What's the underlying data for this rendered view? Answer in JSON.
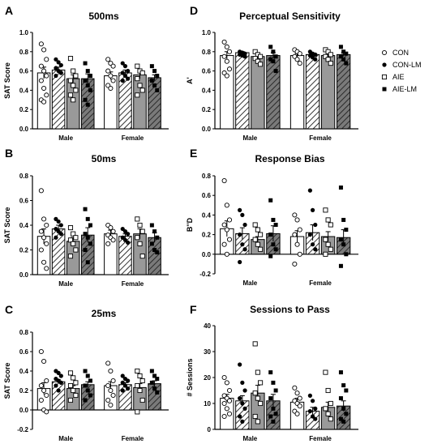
{
  "legend": {
    "items": [
      {
        "label": "CON",
        "marker": "open-circle",
        "fill": "#ffffff"
      },
      {
        "label": "CON-LM",
        "marker": "filled-circle",
        "fill": "#ffffff"
      },
      {
        "label": "AIE",
        "marker": "open-square",
        "fill": "#999999"
      },
      {
        "label": "AIE-LM",
        "marker": "filled-square",
        "fill": "hatched-dark"
      }
    ],
    "placement": "right"
  },
  "chart_data": [
    {
      "panel": "A",
      "type": "bar",
      "title": "500ms",
      "ylabel": "SAT Score",
      "ylim": [
        0,
        1.0
      ],
      "yticks": [
        "0.0",
        "0.2",
        "0.4",
        "0.6",
        "0.8",
        "1.0"
      ],
      "categories": [
        "Male",
        "Female"
      ],
      "series": [
        {
          "name": "CON",
          "values": [
            0.58,
            0.55
          ],
          "err": [
            0.06,
            0.04
          ],
          "points": [
            [
              0.88,
              0.82,
              0.72,
              0.65,
              0.6,
              0.55,
              0.5,
              0.42,
              0.35,
              0.3,
              0.28
            ],
            [
              0.72,
              0.68,
              0.65,
              0.6,
              0.55,
              0.5,
              0.45,
              0.42
            ]
          ]
        },
        {
          "name": "CON-LM",
          "values": [
            0.61,
            0.58
          ],
          "err": [
            0.03,
            0.03
          ],
          "points": [
            [
              0.72,
              0.69,
              0.66,
              0.63,
              0.6,
              0.58,
              0.55
            ],
            [
              0.68,
              0.65,
              0.6,
              0.58,
              0.55,
              0.52,
              0.5
            ]
          ]
        },
        {
          "name": "AIE",
          "values": [
            0.52,
            0.56
          ],
          "err": [
            0.04,
            0.04
          ],
          "points": [
            [
              0.73,
              0.6,
              0.55,
              0.5,
              0.45,
              0.4,
              0.35,
              0.3
            ],
            [
              0.65,
              0.6,
              0.58,
              0.52,
              0.45,
              0.4,
              0.35
            ]
          ]
        },
        {
          "name": "AIE-LM",
          "values": [
            0.52,
            0.53
          ],
          "err": [
            0.05,
            0.03
          ],
          "points": [
            [
              0.68,
              0.6,
              0.55,
              0.5,
              0.45,
              0.4,
              0.3,
              0.25
            ],
            [
              0.65,
              0.6,
              0.55,
              0.5,
              0.45,
              0.4
            ]
          ]
        }
      ]
    },
    {
      "panel": "B",
      "type": "bar",
      "title": "50ms",
      "ylabel": "SAT Score",
      "ylim": [
        0,
        0.8
      ],
      "yticks": [
        "0.0",
        "0.2",
        "0.4",
        "0.6",
        "0.8"
      ],
      "categories": [
        "Male",
        "Female"
      ],
      "series": [
        {
          "name": "CON",
          "values": [
            0.31,
            0.33
          ],
          "err": [
            0.06,
            0.03
          ],
          "points": [
            [
              0.68,
              0.45,
              0.4,
              0.35,
              0.3,
              0.25,
              0.2,
              0.1,
              0.05
            ],
            [
              0.4,
              0.38,
              0.35,
              0.32,
              0.3,
              0.28,
              0.25
            ]
          ]
        },
        {
          "name": "CON-LM",
          "values": [
            0.37,
            0.31
          ],
          "err": [
            0.03,
            0.02
          ],
          "points": [
            [
              0.45,
              0.43,
              0.4,
              0.37,
              0.35,
              0.33,
              0.3
            ],
            [
              0.37,
              0.35,
              0.33,
              0.3,
              0.28,
              0.26
            ]
          ]
        },
        {
          "name": "AIE",
          "values": [
            0.27,
            0.33
          ],
          "err": [
            0.03,
            0.04
          ],
          "points": [
            [
              0.38,
              0.33,
              0.3,
              0.28,
              0.25,
              0.2,
              0.15
            ],
            [
              0.45,
              0.4,
              0.35,
              0.3,
              0.25,
              0.15
            ]
          ]
        },
        {
          "name": "AIE-LM",
          "values": [
            0.32,
            0.3
          ],
          "err": [
            0.06,
            0.04
          ],
          "points": [
            [
              0.53,
              0.45,
              0.4,
              0.33,
              0.3,
              0.25,
              0.2,
              0.1
            ],
            [
              0.4,
              0.35,
              0.3,
              0.25,
              0.2,
              0.18
            ]
          ]
        }
      ]
    },
    {
      "panel": "C",
      "type": "bar",
      "title": "25ms",
      "ylabel": "SAT Score",
      "ylim": [
        -0.2,
        0.8
      ],
      "yticks": [
        "-0.2",
        "0.0",
        "0.2",
        "0.4",
        "0.6",
        "0.8"
      ],
      "categories": [
        "Male",
        "Female"
      ],
      "series": [
        {
          "name": "CON",
          "values": [
            0.22,
            0.25
          ],
          "err": [
            0.06,
            0.04
          ],
          "points": [
            [
              0.6,
              0.5,
              0.3,
              0.25,
              0.2,
              0.15,
              0.1,
              0.0,
              -0.02
            ],
            [
              0.48,
              0.4,
              0.3,
              0.25,
              0.2,
              0.15,
              0.1,
              0.05
            ]
          ]
        },
        {
          "name": "CON-LM",
          "values": [
            0.29,
            0.26
          ],
          "err": [
            0.02,
            0.02
          ],
          "points": [
            [
              0.4,
              0.38,
              0.35,
              0.32,
              0.3,
              0.28,
              0.25,
              0.2
            ],
            [
              0.35,
              0.32,
              0.3,
              0.28,
              0.25,
              0.22,
              0.2
            ]
          ]
        },
        {
          "name": "AIE",
          "values": [
            0.22,
            0.23
          ],
          "err": [
            0.03,
            0.04
          ],
          "points": [
            [
              0.38,
              0.33,
              0.28,
              0.25,
              0.2,
              0.15,
              0.1
            ],
            [
              0.4,
              0.35,
              0.3,
              0.25,
              0.2,
              0.1,
              -0.02
            ]
          ]
        },
        {
          "name": "AIE-LM",
          "values": [
            0.26,
            0.27
          ],
          "err": [
            0.03,
            0.03
          ],
          "points": [
            [
              0.4,
              0.35,
              0.3,
              0.25,
              0.2,
              0.15,
              0.1
            ],
            [
              0.4,
              0.35,
              0.32,
              0.28,
              0.22,
              0.18
            ]
          ]
        }
      ]
    },
    {
      "panel": "D",
      "type": "bar",
      "title": "Perceptual Sensitivity",
      "ylabel": "A'",
      "ylim": [
        0,
        1.0
      ],
      "yticks": [
        "0.0",
        "0.2",
        "0.4",
        "0.6",
        "0.8",
        "1.0"
      ],
      "categories": [
        "Male",
        "Female"
      ],
      "series": [
        {
          "name": "CON",
          "values": [
            0.76,
            0.76
          ],
          "err": [
            0.04,
            0.02
          ],
          "points": [
            [
              0.9,
              0.85,
              0.8,
              0.75,
              0.7,
              0.62,
              0.58,
              0.55
            ],
            [
              0.82,
              0.8,
              0.78,
              0.75,
              0.72,
              0.68
            ]
          ]
        },
        {
          "name": "CON-LM",
          "values": [
            0.79,
            0.77
          ],
          "err": [
            0.01,
            0.01
          ],
          "points": [
            [
              0.8,
              0.79,
              0.78,
              0.77,
              0.76,
              0.75
            ],
            [
              0.8,
              0.78,
              0.77,
              0.76,
              0.74,
              0.72
            ]
          ]
        },
        {
          "name": "AIE",
          "values": [
            0.75,
            0.76
          ],
          "err": [
            0.02,
            0.02
          ],
          "points": [
            [
              0.8,
              0.77,
              0.75,
              0.73,
              0.7,
              0.67
            ],
            [
              0.82,
              0.8,
              0.77,
              0.75,
              0.72,
              0.68
            ]
          ]
        },
        {
          "name": "AIE-LM",
          "values": [
            0.76,
            0.77
          ],
          "err": [
            0.03,
            0.02
          ],
          "points": [
            [
              0.85,
              0.8,
              0.75,
              0.72,
              0.7,
              0.6
            ],
            [
              0.85,
              0.8,
              0.78,
              0.75,
              0.72,
              0.68
            ]
          ]
        }
      ]
    },
    {
      "panel": "E",
      "type": "bar",
      "title": "Response Bias",
      "ylabel": "B''D",
      "ylim": [
        -0.2,
        0.8
      ],
      "yticks": [
        "-0.2",
        "0.0",
        "0.2",
        "0.4",
        "0.6",
        "0.8"
      ],
      "categories": [
        "Male",
        "Female"
      ],
      "series": [
        {
          "name": "CON",
          "values": [
            0.26,
            0.18
          ],
          "err": [
            0.08,
            0.06
          ],
          "points": [
            [
              0.75,
              0.5,
              0.35,
              0.3,
              0.25,
              0.15,
              0.1,
              0.0
            ],
            [
              0.4,
              0.35,
              0.25,
              0.2,
              0.1,
              0.0,
              -0.1
            ]
          ]
        },
        {
          "name": "CON-LM",
          "values": [
            0.21,
            0.22
          ],
          "err": [
            0.06,
            0.08
          ],
          "points": [
            [
              0.45,
              0.4,
              0.3,
              0.2,
              0.1,
              0.05,
              -0.08
            ],
            [
              0.65,
              0.45,
              0.3,
              0.2,
              0.1,
              0.05
            ]
          ]
        },
        {
          "name": "AIE",
          "values": [
            0.15,
            0.18
          ],
          "err": [
            0.03,
            0.05
          ],
          "points": [
            [
              0.3,
              0.25,
              0.2,
              0.15,
              0.1,
              0.05
            ],
            [
              0.45,
              0.35,
              0.3,
              0.15,
              0.1,
              0.05,
              0.0
            ]
          ]
        },
        {
          "name": "AIE-LM",
          "values": [
            0.21,
            0.17
          ],
          "err": [
            0.08,
            0.08
          ],
          "points": [
            [
              0.55,
              0.35,
              0.3,
              0.2,
              0.1,
              0.05,
              -0.02
            ],
            [
              0.68,
              0.35,
              0.25,
              0.15,
              0.1,
              0.0,
              -0.12
            ]
          ]
        }
      ]
    },
    {
      "panel": "F",
      "type": "bar",
      "title": "Sessions to Pass",
      "ylabel": "# Sessions",
      "ylim": [
        0,
        40
      ],
      "yticks": [
        "0",
        "10",
        "20",
        "30",
        "40"
      ],
      "categories": [
        "Male",
        "Female"
      ],
      "series": [
        {
          "name": "CON",
          "values": [
            12,
            10.5
          ],
          "err": [
            1.5,
            1.5
          ],
          "points": [
            [
              20,
              18,
              15,
              13,
              12,
              11,
              10,
              8,
              6,
              5
            ],
            [
              16,
              14,
              12,
              11,
              10,
              9,
              7,
              6
            ]
          ]
        },
        {
          "name": "CON-LM",
          "values": [
            11,
            7
          ],
          "err": [
            2.0,
            1.5
          ],
          "points": [
            [
              25,
              18,
              15,
              12,
              10,
              8,
              5,
              3
            ],
            [
              13,
              11,
              8,
              7,
              5,
              4
            ]
          ]
        },
        {
          "name": "AIE",
          "values": [
            14,
            8.5
          ],
          "err": [
            3.0,
            2.0
          ],
          "points": [
            [
              33,
              22,
              18,
              14,
              12,
              10,
              5,
              3
            ],
            [
              22,
              15,
              10,
              8,
              6,
              4
            ]
          ]
        },
        {
          "name": "AIE-LM",
          "values": [
            11,
            9
          ],
          "err": [
            2.5,
            2.0
          ],
          "points": [
            [
              22,
              18,
              15,
              12,
              8,
              6,
              5,
              3
            ],
            [
              22,
              17,
              15,
              12,
              8,
              6,
              4,
              3
            ]
          ]
        }
      ]
    }
  ]
}
